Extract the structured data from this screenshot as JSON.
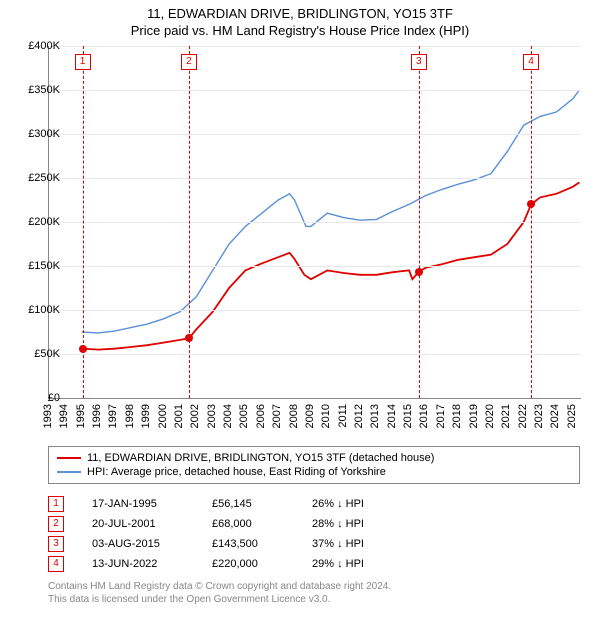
{
  "title_line1": "11, EDWARDIAN DRIVE, BRIDLINGTON, YO15 3TF",
  "title_line2": "Price paid vs. HM Land Registry's House Price Index (HPI)",
  "chart": {
    "type": "line",
    "x_domain": [
      1993,
      2025.5
    ],
    "y_domain": [
      0,
      400000
    ],
    "y_ticks": [
      0,
      50000,
      100000,
      150000,
      200000,
      250000,
      300000,
      350000,
      400000
    ],
    "y_tick_labels": [
      "£0",
      "£50K",
      "£100K",
      "£150K",
      "£200K",
      "£250K",
      "£300K",
      "£350K",
      "£400K"
    ],
    "x_ticks": [
      1993,
      1994,
      1995,
      1996,
      1997,
      1998,
      1999,
      2000,
      2001,
      2002,
      2003,
      2004,
      2005,
      2006,
      2007,
      2008,
      2009,
      2010,
      2011,
      2012,
      2013,
      2014,
      2015,
      2016,
      2017,
      2018,
      2019,
      2020,
      2021,
      2022,
      2023,
      2024,
      2025
    ],
    "grid_color": "#e8e8e8",
    "axis_color": "#888888",
    "background_color": "#ffffff",
    "series": {
      "property": {
        "color": "#e00000",
        "width": 1.8,
        "label": "11, EDWARDIAN DRIVE, BRIDLINGTON, YO15 3TF (detached house)",
        "data": [
          [
            1995.05,
            56145
          ],
          [
            1996,
            55000
          ],
          [
            1997,
            56000
          ],
          [
            1998,
            58000
          ],
          [
            1999,
            60000
          ],
          [
            2000,
            63000
          ],
          [
            2001,
            66000
          ],
          [
            2001.55,
            68000
          ],
          [
            2002,
            78000
          ],
          [
            2003,
            98000
          ],
          [
            2004,
            125000
          ],
          [
            2005,
            145000
          ],
          [
            2006,
            153000
          ],
          [
            2007,
            160000
          ],
          [
            2007.7,
            165000
          ],
          [
            2008,
            158000
          ],
          [
            2008.6,
            140000
          ],
          [
            2009,
            135000
          ],
          [
            2010,
            145000
          ],
          [
            2011,
            142000
          ],
          [
            2012,
            140000
          ],
          [
            2013,
            140000
          ],
          [
            2014,
            143000
          ],
          [
            2015,
            145000
          ],
          [
            2015.2,
            135000
          ],
          [
            2015.59,
            143500
          ],
          [
            2016,
            148000
          ],
          [
            2017,
            152000
          ],
          [
            2018,
            157000
          ],
          [
            2019,
            160000
          ],
          [
            2020,
            163000
          ],
          [
            2021,
            175000
          ],
          [
            2022,
            200000
          ],
          [
            2022.45,
            220000
          ],
          [
            2023,
            228000
          ],
          [
            2024,
            232000
          ],
          [
            2025,
            240000
          ],
          [
            2025.4,
            245000
          ]
        ]
      },
      "hpi": {
        "color": "#5b8fd6",
        "width": 1.4,
        "label": "HPI: Average price, detached house, East Riding of Yorkshire",
        "data": [
          [
            1995,
            75000
          ],
          [
            1996,
            74000
          ],
          [
            1997,
            76000
          ],
          [
            1998,
            80000
          ],
          [
            1999,
            84000
          ],
          [
            2000,
            90000
          ],
          [
            2001,
            98000
          ],
          [
            2002,
            115000
          ],
          [
            2003,
            145000
          ],
          [
            2004,
            175000
          ],
          [
            2005,
            195000
          ],
          [
            2006,
            210000
          ],
          [
            2007,
            225000
          ],
          [
            2007.7,
            232000
          ],
          [
            2008,
            225000
          ],
          [
            2008.7,
            195000
          ],
          [
            2009,
            195000
          ],
          [
            2010,
            210000
          ],
          [
            2011,
            205000
          ],
          [
            2012,
            202000
          ],
          [
            2013,
            203000
          ],
          [
            2014,
            212000
          ],
          [
            2015,
            220000
          ],
          [
            2016,
            230000
          ],
          [
            2017,
            237000
          ],
          [
            2018,
            243000
          ],
          [
            2019,
            248000
          ],
          [
            2020,
            255000
          ],
          [
            2021,
            280000
          ],
          [
            2022,
            310000
          ],
          [
            2023,
            320000
          ],
          [
            2024,
            325000
          ],
          [
            2025,
            340000
          ],
          [
            2025.4,
            350000
          ]
        ]
      }
    },
    "markers": [
      {
        "n": "1",
        "x": 1995.05,
        "y": 56145
      },
      {
        "n": "2",
        "x": 2001.55,
        "y": 68000
      },
      {
        "n": "3",
        "x": 2015.59,
        "y": 143500
      },
      {
        "n": "4",
        "x": 2022.45,
        "y": 220000
      }
    ],
    "marker_vline_color": "#e00000",
    "marker_box_border": "#e00000"
  },
  "legend": {
    "border_color": "#888888",
    "items": [
      {
        "key": "property"
      },
      {
        "key": "hpi"
      }
    ]
  },
  "transactions": [
    {
      "n": "1",
      "date": "17-JAN-1995",
      "price": "£56,145",
      "pct": "26% ↓ HPI"
    },
    {
      "n": "2",
      "date": "20-JUL-2001",
      "price": "£68,000",
      "pct": "28% ↓ HPI"
    },
    {
      "n": "3",
      "date": "03-AUG-2015",
      "price": "£143,500",
      "pct": "37% ↓ HPI"
    },
    {
      "n": "4",
      "date": "13-JUN-2022",
      "price": "£220,000",
      "pct": "29% ↓ HPI"
    }
  ],
  "footer_line1": "Contains HM Land Registry data © Crown copyright and database right 2024.",
  "footer_line2": "This data is licensed under the Open Government Licence v3.0."
}
